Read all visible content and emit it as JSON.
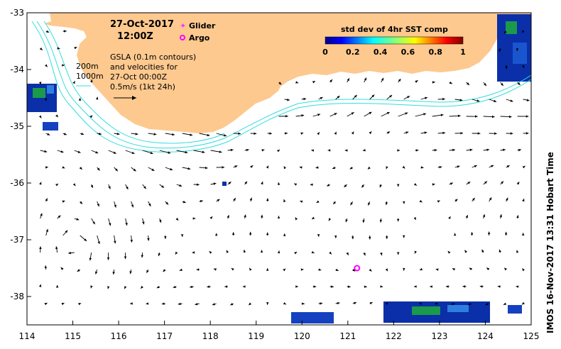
{
  "header": {
    "date": "27-Oct-2017",
    "time": "12:00Z"
  },
  "legend": {
    "glider_label": "Glider",
    "argo_label": "Argo",
    "glider_color": "#ff33ff",
    "argo_color": "#ff00ff"
  },
  "annotation": {
    "line1": "GSLA (0.1m contours)",
    "line2": "and velocities for",
    "line3": "27-Oct 00:00Z",
    "line4": "0.5m/s (1kt 24h)"
  },
  "depth_labels": {
    "shallow": "200m",
    "deep": "1000m"
  },
  "colorbar": {
    "title": "std dev of 4hr SST comp",
    "ticks": [
      "0",
      "0.2",
      "0.4",
      "0.6",
      "0.8",
      "1"
    ],
    "range": [
      0,
      1
    ]
  },
  "axes": {
    "x_ticks": [
      "114",
      "115",
      "116",
      "117",
      "118",
      "119",
      "120",
      "121",
      "122",
      "123",
      "124",
      "125"
    ],
    "y_ticks": [
      "-33",
      "-34",
      "-35",
      "-36",
      "-37",
      "-38"
    ],
    "lon_range": [
      114,
      125
    ],
    "lat_range": [
      -38.5,
      -33
    ]
  },
  "argo_float": {
    "lon": 121.2,
    "lat": -37.5
  },
  "credit": "IMOS 16-Nov-2017 13:31 Hobart Time",
  "colors": {
    "land": "#fdc98f",
    "contour": "#33dddd",
    "arrow": "#000000"
  }
}
